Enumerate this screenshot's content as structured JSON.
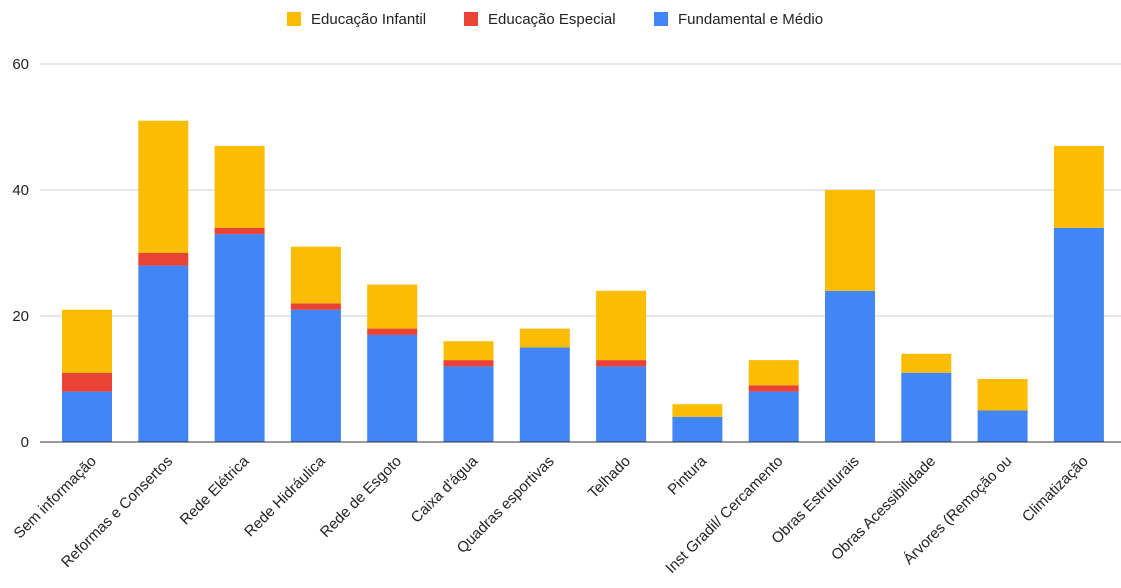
{
  "chart_data": {
    "type": "bar",
    "stacked": true,
    "categories": [
      "Sem informação",
      "Reformas e Consertos",
      "Rede Elétrica",
      "Rede Hidráulica",
      "Rede de Esgoto",
      "Caixa d'água",
      "Quadras esportivas",
      "Telhado",
      "Pintura",
      "Inst Gradil/ Cercamento",
      "Obras Estruturais",
      "Obras Acessibilidade",
      "Árvores (Remoção ou",
      "Climatização"
    ],
    "series": [
      {
        "name": "Fundamental e Médio",
        "color": "#4285f4",
        "values": [
          8,
          28,
          33,
          21,
          17,
          12,
          15,
          12,
          4,
          8,
          24,
          11,
          5,
          34
        ]
      },
      {
        "name": "Educação Especial",
        "color": "#ea4335",
        "values": [
          3,
          2,
          1,
          1,
          1,
          1,
          0,
          1,
          0,
          1,
          0,
          0,
          0,
          0
        ]
      },
      {
        "name": "Educação Infantil",
        "color": "#fbbc04",
        "values": [
          10,
          21,
          13,
          9,
          7,
          3,
          3,
          11,
          2,
          4,
          16,
          3,
          5,
          13
        ]
      }
    ],
    "legend": [
      "Educação Infantil",
      "Educação Especial",
      "Fundamental e Médio"
    ],
    "legend_position": "top",
    "yticks": [
      "0",
      "20",
      "40",
      "60"
    ],
    "ylim": [
      0,
      60
    ],
    "grid": true,
    "xlabel": "",
    "ylabel": "",
    "title": ""
  }
}
